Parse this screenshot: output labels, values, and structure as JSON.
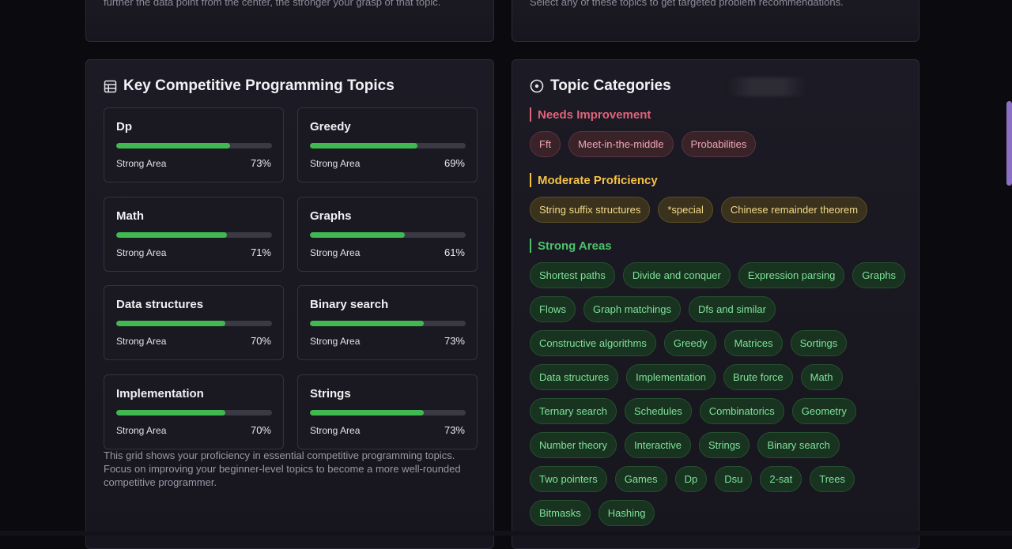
{
  "top": {
    "left_desc": "further the data point from the center, the stronger your grasp of that topic.",
    "right_desc": "Select any of these topics to get targeted problem recommendations."
  },
  "key_topics": {
    "title": "Key Competitive Programming Topics",
    "icon": "table-icon",
    "tiles": [
      {
        "name": "Dp",
        "status": "Strong Area",
        "percent": 73,
        "percent_label": "73%"
      },
      {
        "name": "Greedy",
        "status": "Strong Area",
        "percent": 69,
        "percent_label": "69%"
      },
      {
        "name": "Math",
        "status": "Strong Area",
        "percent": 71,
        "percent_label": "71%"
      },
      {
        "name": "Graphs",
        "status": "Strong Area",
        "percent": 61,
        "percent_label": "61%"
      },
      {
        "name": "Data structures",
        "status": "Strong Area",
        "percent": 70,
        "percent_label": "70%"
      },
      {
        "name": "Binary search",
        "status": "Strong Area",
        "percent": 73,
        "percent_label": "73%"
      },
      {
        "name": "Implementation",
        "status": "Strong Area",
        "percent": 70,
        "percent_label": "70%"
      },
      {
        "name": "Strings",
        "status": "Strong Area",
        "percent": 73,
        "percent_label": "73%"
      }
    ],
    "note": "This grid shows your proficiency in essential competitive programming topics. Focus on improving your beginner-level topics to become a more well-rounded competitive programmer."
  },
  "categories": {
    "title": "Topic Categories",
    "icon": "target-icon",
    "needs_improvement": {
      "label": "Needs Improvement",
      "color": "#e0647a",
      "chips": [
        "Fft",
        "Meet-in-the-middle",
        "Probabilities"
      ]
    },
    "moderate": {
      "label": "Moderate Proficiency",
      "color": "#f5c242",
      "chips": [
        "String suffix structures",
        "*special",
        "Chinese remainder theorem"
      ]
    },
    "strong": {
      "label": "Strong Areas",
      "color": "#4cc36a",
      "chips": [
        "Shortest paths",
        "Divide and conquer",
        "Expression parsing",
        "Graphs",
        "Flows",
        "Graph matchings",
        "Dfs and similar",
        "Constructive algorithms",
        "Greedy",
        "Matrices",
        "Sortings",
        "Data structures",
        "Implementation",
        "Brute force",
        "Math",
        "Ternary search",
        "Schedules",
        "Combinatorics",
        "Geometry",
        "Number theory",
        "Interactive",
        "Strings",
        "Binary search",
        "Two pointers",
        "Games",
        "Dp",
        "Dsu",
        "2-sat",
        "Trees",
        "Bitmasks",
        "Hashing"
      ]
    }
  }
}
